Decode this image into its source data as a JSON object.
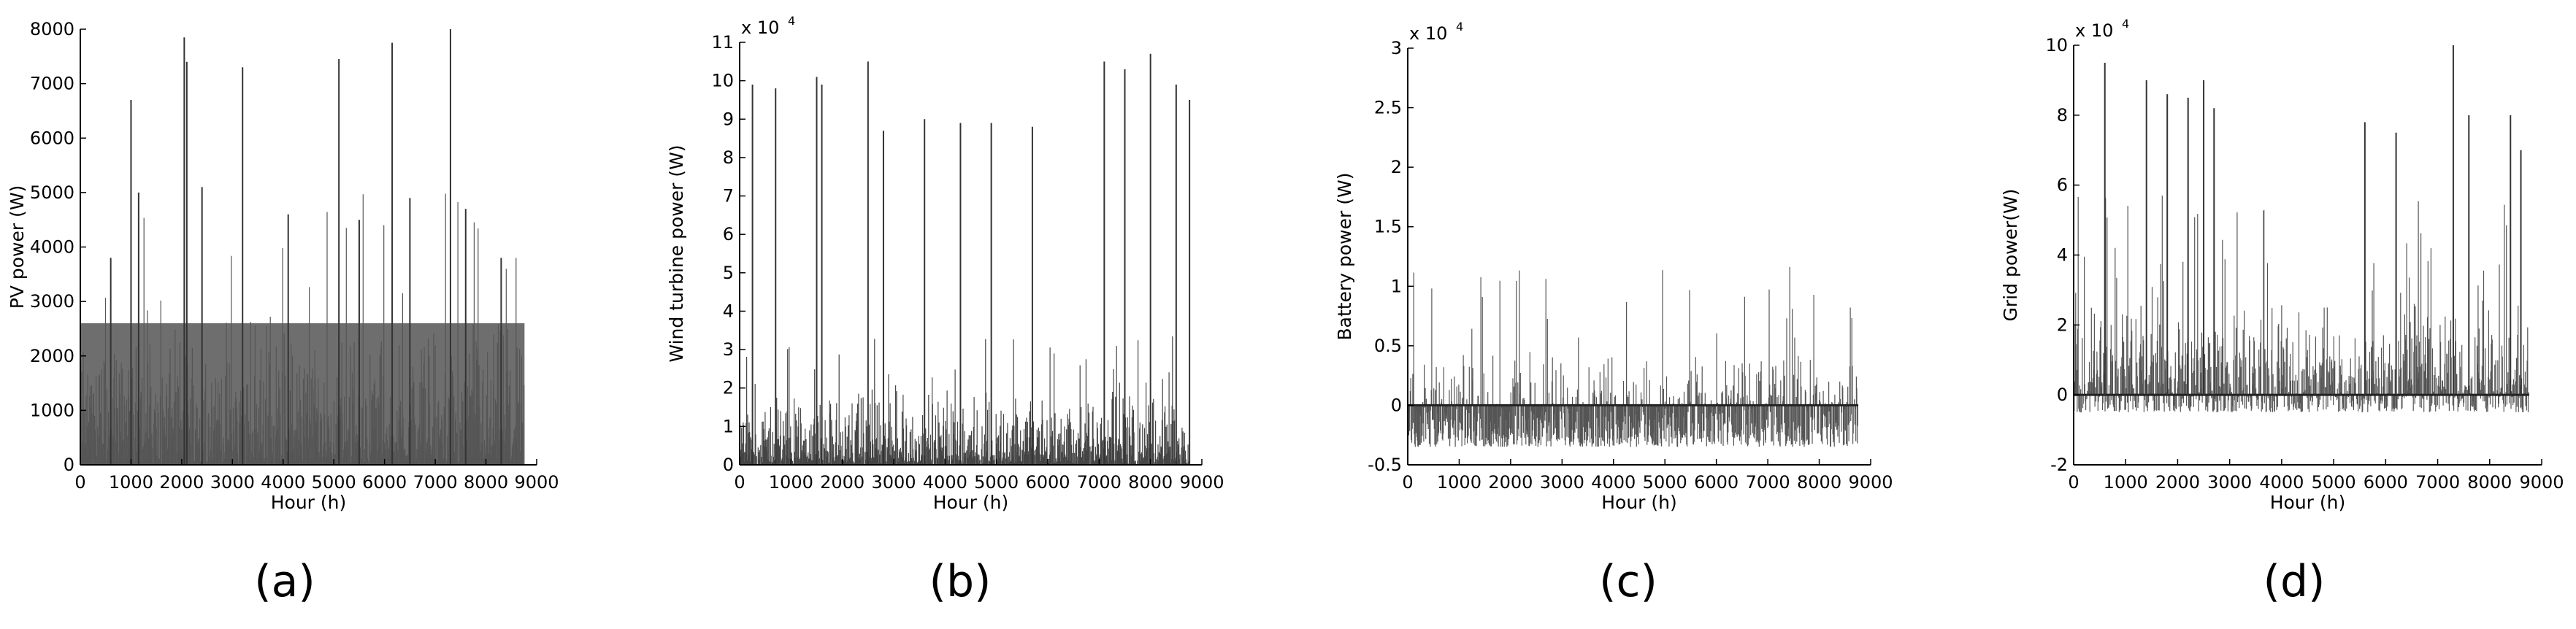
{
  "figure": {
    "captions": [
      "(a)",
      "(b)",
      "(c)",
      "(d)"
    ]
  },
  "chart_data": [
    {
      "type": "line",
      "ylabel": "PV power (W)",
      "xlabel": "Hour (h)",
      "xlim": [
        0,
        9000
      ],
      "ylim": [
        0,
        8000
      ],
      "xticks": [
        "0",
        "1000",
        "2000",
        "3000",
        "4000",
        "5000",
        "6000",
        "7000",
        "8000",
        "9000"
      ],
      "yticks": [
        "0",
        "1000",
        "2000",
        "3000",
        "4000",
        "5000",
        "6000",
        "7000",
        "8000"
      ],
      "multiplier": "",
      "exponent": "",
      "series": [
        {
          "color": "#555555",
          "x_max": 8760,
          "baseline": 0,
          "typical_range": [
            0,
            2800
          ],
          "dense_fill_to": 2600,
          "peaks": [
            [
              1000,
              6700
            ],
            [
              2050,
              7850
            ],
            [
              2100,
              7400
            ],
            [
              3200,
              7300
            ],
            [
              5100,
              7450
            ],
            [
              6150,
              7750
            ],
            [
              7300,
              8000
            ],
            [
              1150,
              5000
            ],
            [
              2400,
              5100
            ],
            [
              4100,
              4600
            ],
            [
              5500,
              4500
            ],
            [
              6500,
              4900
            ],
            [
              7600,
              4700
            ],
            [
              600,
              3800
            ],
            [
              8300,
              3800
            ]
          ]
        }
      ]
    },
    {
      "type": "line",
      "ylabel": "Wind turbine power (W)",
      "xlabel": "Hour (h)",
      "xlim": [
        0,
        9000
      ],
      "ylim": [
        0,
        110000
      ],
      "xticks": [
        "0",
        "1000",
        "2000",
        "3000",
        "4000",
        "5000",
        "6000",
        "7000",
        "8000",
        "9000"
      ],
      "yticks": [
        "0",
        "1",
        "2",
        "3",
        "4",
        "5",
        "6",
        "7",
        "8",
        "9",
        "10",
        "11"
      ],
      "multiplier": "x 10",
      "exponent": "4",
      "series": [
        {
          "color": "#444444",
          "x_max": 8760,
          "baseline": 0,
          "typical_range": [
            0,
            20000
          ],
          "dense_fill_to": 0,
          "peaks": [
            [
              250,
              99000
            ],
            [
              700,
              98000
            ],
            [
              1500,
              101000
            ],
            [
              1600,
              99000
            ],
            [
              2500,
              105000
            ],
            [
              2800,
              87000
            ],
            [
              3600,
              90000
            ],
            [
              4300,
              89000
            ],
            [
              4900,
              89000
            ],
            [
              5700,
              88000
            ],
            [
              7100,
              105000
            ],
            [
              7500,
              103000
            ],
            [
              8000,
              107000
            ],
            [
              8500,
              99000
            ],
            [
              8760,
              95000
            ]
          ]
        }
      ]
    },
    {
      "type": "line",
      "ylabel": "Battery power (W)",
      "xlabel": "Hour (h)",
      "xlim": [
        0,
        9000
      ],
      "ylim": [
        -5000,
        30000
      ],
      "xticks": [
        "0",
        "1000",
        "2000",
        "3000",
        "4000",
        "5000",
        "6000",
        "7000",
        "8000",
        "9000"
      ],
      "yticks": [
        "-0.5",
        "0",
        "0.5",
        "1",
        "1.5",
        "2",
        "2.5",
        "3"
      ],
      "multiplier": "x 10",
      "exponent": "4",
      "series": [
        {
          "color": "#555555",
          "x_max": 8760,
          "baseline": 0,
          "typical_range": [
            -3500,
            5000
          ],
          "dense_fill_to": 0,
          "peaks": []
        }
      ]
    },
    {
      "type": "line",
      "ylabel": "Grid power(W)",
      "xlabel": "Hour (h)",
      "xlim": [
        0,
        9000
      ],
      "ylim": [
        -20000,
        100000
      ],
      "xticks": [
        "0",
        "1000",
        "2000",
        "3000",
        "4000",
        "5000",
        "6000",
        "7000",
        "8000",
        "9000"
      ],
      "yticks": [
        "-2",
        "0",
        "2",
        "4",
        "6",
        "8",
        "10"
      ],
      "multiplier": "x 10",
      "exponent": "4",
      "series": [
        {
          "color": "#555555",
          "x_max": 8760,
          "baseline": 0,
          "typical_range": [
            -5000,
            30000
          ],
          "dense_fill_to": 0,
          "peaks": [
            [
              600,
              95000
            ],
            [
              1400,
              90000
            ],
            [
              1800,
              86000
            ],
            [
              2200,
              85000
            ],
            [
              2500,
              90000
            ],
            [
              2700,
              82000
            ],
            [
              5600,
              78000
            ],
            [
              6200,
              75000
            ],
            [
              7300,
              100000
            ],
            [
              7600,
              80000
            ],
            [
              8400,
              80000
            ],
            [
              8600,
              70000
            ]
          ]
        }
      ]
    }
  ]
}
